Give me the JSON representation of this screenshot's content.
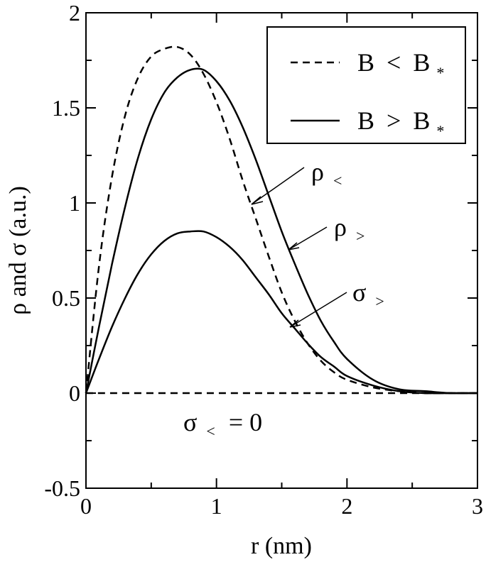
{
  "chart_data": {
    "type": "line",
    "xlabel": "r (nm)",
    "ylabel": "ρ and σ (a.u.)",
    "xlim": [
      0,
      3
    ],
    "ylim": [
      -0.5,
      2
    ],
    "x_ticks": [
      "0",
      "1",
      "2",
      "3"
    ],
    "y_ticks": [
      "-0.5",
      "0",
      "0.5",
      "1",
      "1.5",
      "2"
    ],
    "grid": false,
    "legend_position": "top-right",
    "legend": [
      {
        "label": "B",
        "relation": "<",
        "sub": "*",
        "style": "dashed"
      },
      {
        "label": "B",
        "relation": ">",
        "sub": "*",
        "style": "solid"
      }
    ],
    "series": [
      {
        "style": "dashed",
        "points": [
          [
            0,
            0
          ],
          [
            0.1,
            0.67
          ],
          [
            0.2,
            1.14
          ],
          [
            0.3,
            1.46
          ],
          [
            0.4,
            1.66
          ],
          [
            0.5,
            1.77
          ],
          [
            0.6,
            1.81
          ],
          [
            0.7,
            1.82
          ],
          [
            0.8,
            1.78
          ],
          [
            0.9,
            1.68
          ],
          [
            1.0,
            1.53
          ],
          [
            1.1,
            1.34
          ],
          [
            1.2,
            1.12
          ],
          [
            1.3,
            0.92
          ],
          [
            1.4,
            0.72
          ],
          [
            1.5,
            0.53
          ],
          [
            1.6,
            0.38
          ],
          [
            1.7,
            0.26
          ],
          [
            1.8,
            0.17
          ],
          [
            1.9,
            0.11
          ],
          [
            2.0,
            0.07
          ],
          [
            2.2,
            0.03
          ],
          [
            2.4,
            0.01
          ],
          [
            2.6,
            0.0
          ],
          [
            2.8,
            0.0
          ],
          [
            3.0,
            0.0
          ]
        ]
      },
      {
        "style": "solid",
        "points": [
          [
            0,
            0
          ],
          [
            0.1,
            0.35
          ],
          [
            0.2,
            0.68
          ],
          [
            0.3,
            0.98
          ],
          [
            0.4,
            1.24
          ],
          [
            0.5,
            1.44
          ],
          [
            0.6,
            1.58
          ],
          [
            0.7,
            1.66
          ],
          [
            0.8,
            1.7
          ],
          [
            0.9,
            1.7
          ],
          [
            1.0,
            1.64
          ],
          [
            1.1,
            1.54
          ],
          [
            1.2,
            1.4
          ],
          [
            1.3,
            1.23
          ],
          [
            1.4,
            1.04
          ],
          [
            1.5,
            0.85
          ],
          [
            1.6,
            0.68
          ],
          [
            1.7,
            0.52
          ],
          [
            1.8,
            0.38
          ],
          [
            1.9,
            0.27
          ],
          [
            2.0,
            0.18
          ],
          [
            2.2,
            0.07
          ],
          [
            2.4,
            0.02
          ],
          [
            2.6,
            0.01
          ],
          [
            2.8,
            0.0
          ],
          [
            3.0,
            0.0
          ]
        ]
      },
      {
        "style": "solid",
        "points": [
          [
            0,
            0
          ],
          [
            0.1,
            0.18
          ],
          [
            0.2,
            0.35
          ],
          [
            0.3,
            0.5
          ],
          [
            0.4,
            0.63
          ],
          [
            0.5,
            0.73
          ],
          [
            0.6,
            0.8
          ],
          [
            0.7,
            0.84
          ],
          [
            0.8,
            0.85
          ],
          [
            0.9,
            0.85
          ],
          [
            1.0,
            0.82
          ],
          [
            1.1,
            0.77
          ],
          [
            1.2,
            0.7
          ],
          [
            1.3,
            0.61
          ],
          [
            1.4,
            0.52
          ],
          [
            1.5,
            0.42
          ],
          [
            1.6,
            0.34
          ],
          [
            1.7,
            0.26
          ],
          [
            1.8,
            0.19
          ],
          [
            1.9,
            0.14
          ],
          [
            2.0,
            0.09
          ],
          [
            2.2,
            0.04
          ],
          [
            2.4,
            0.01
          ],
          [
            2.6,
            0.0
          ],
          [
            2.8,
            0.0
          ],
          [
            3.0,
            0.0
          ]
        ]
      },
      {
        "style": "dashed",
        "points": [
          [
            0,
            0
          ],
          [
            3,
            0
          ]
        ]
      }
    ],
    "annotations": [
      {
        "symbol": "ρ",
        "sub": "<",
        "arrow_target": [
          1.25,
          1.0
        ]
      },
      {
        "symbol": "ρ",
        "sub": ">",
        "arrow_target": [
          1.55,
          0.76
        ]
      },
      {
        "symbol": "σ",
        "sub": ">",
        "arrow_target": [
          1.55,
          0.36
        ]
      },
      {
        "symbol": "σ",
        "sub": "<",
        "eq": "= 0"
      }
    ]
  }
}
